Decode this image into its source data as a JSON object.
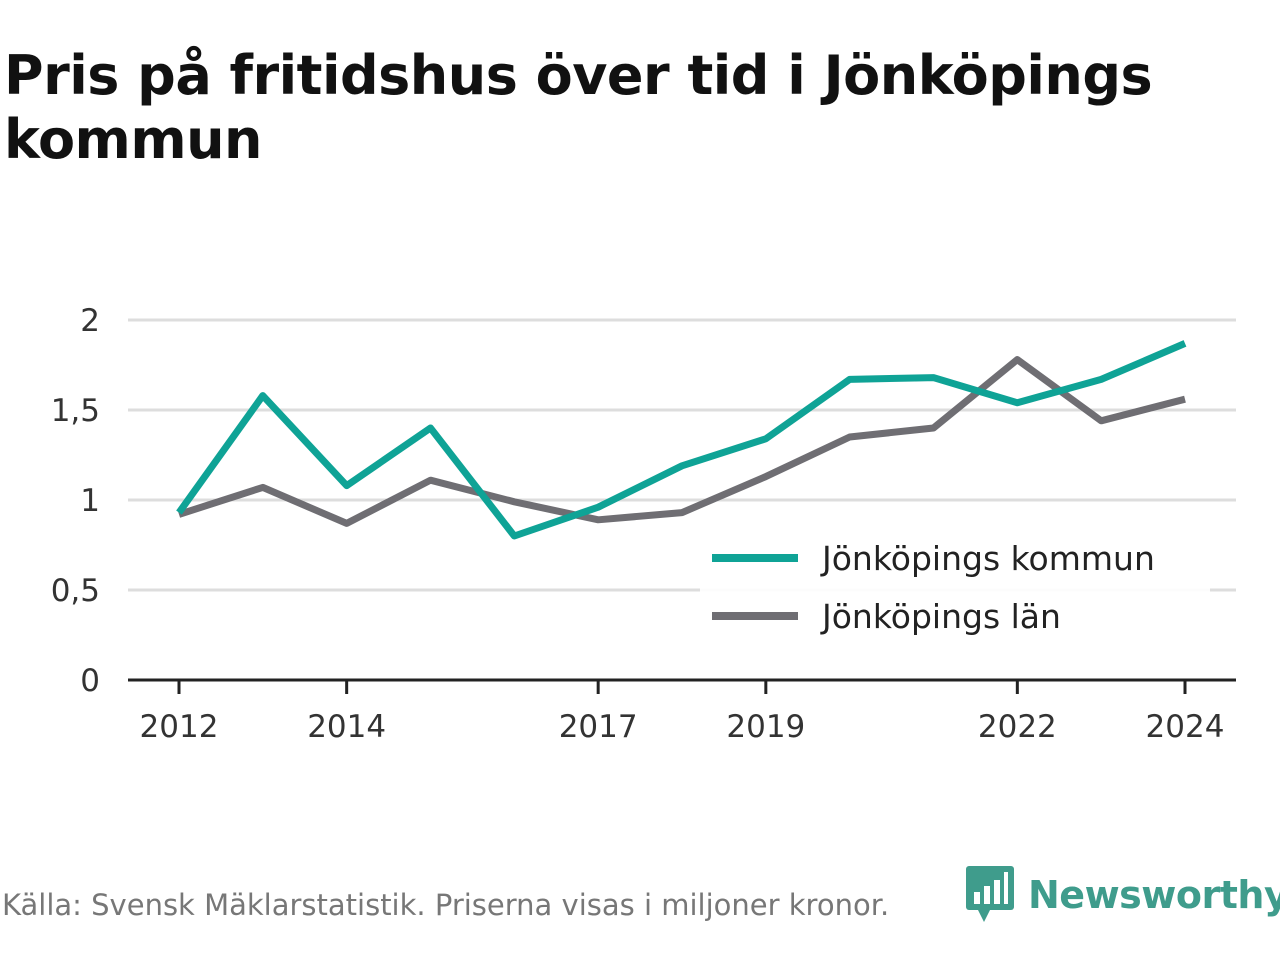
{
  "title": "Pris på fritidshus över tid i Jönköpings kommun",
  "footer": "Källa: Svensk Mäklarstatistik. Priserna visas i miljoner kronor.",
  "brand": "Newsworthy",
  "colors": {
    "kommun": "#0fa396",
    "lan": "#6f6e73",
    "grid": "#dddddd",
    "axis": "#222222",
    "brand": "#3f9c8c"
  },
  "chart_data": {
    "type": "line",
    "title": "Pris på fritidshus över tid i Jönköpings kommun",
    "xlabel": "",
    "ylabel": "",
    "x": [
      2012,
      2013,
      2014,
      2015,
      2016,
      2017,
      2018,
      2019,
      2020,
      2021,
      2022,
      2023,
      2024
    ],
    "xticks": [
      2012,
      2014,
      2017,
      2019,
      2022,
      2024
    ],
    "yticks": [
      0,
      0.5,
      1,
      1.5,
      2
    ],
    "ytick_labels": [
      "0",
      "0,5",
      "1",
      "1,5",
      "2"
    ],
    "ylim": [
      0,
      2
    ],
    "xlim": [
      2012,
      2024
    ],
    "grid": true,
    "legend_position": "lower-right",
    "series": [
      {
        "name": "Jönköpings kommun",
        "color": "#0fa396",
        "values": [
          0.93,
          1.58,
          1.08,
          1.4,
          0.8,
          0.96,
          1.19,
          1.34,
          1.67,
          1.68,
          1.54,
          1.67,
          1.87
        ]
      },
      {
        "name": "Jönköpings län",
        "color": "#6f6e73",
        "values": [
          0.92,
          1.07,
          0.87,
          1.11,
          0.99,
          0.89,
          0.93,
          1.13,
          1.35,
          1.4,
          1.78,
          1.44,
          1.56
        ]
      }
    ]
  }
}
